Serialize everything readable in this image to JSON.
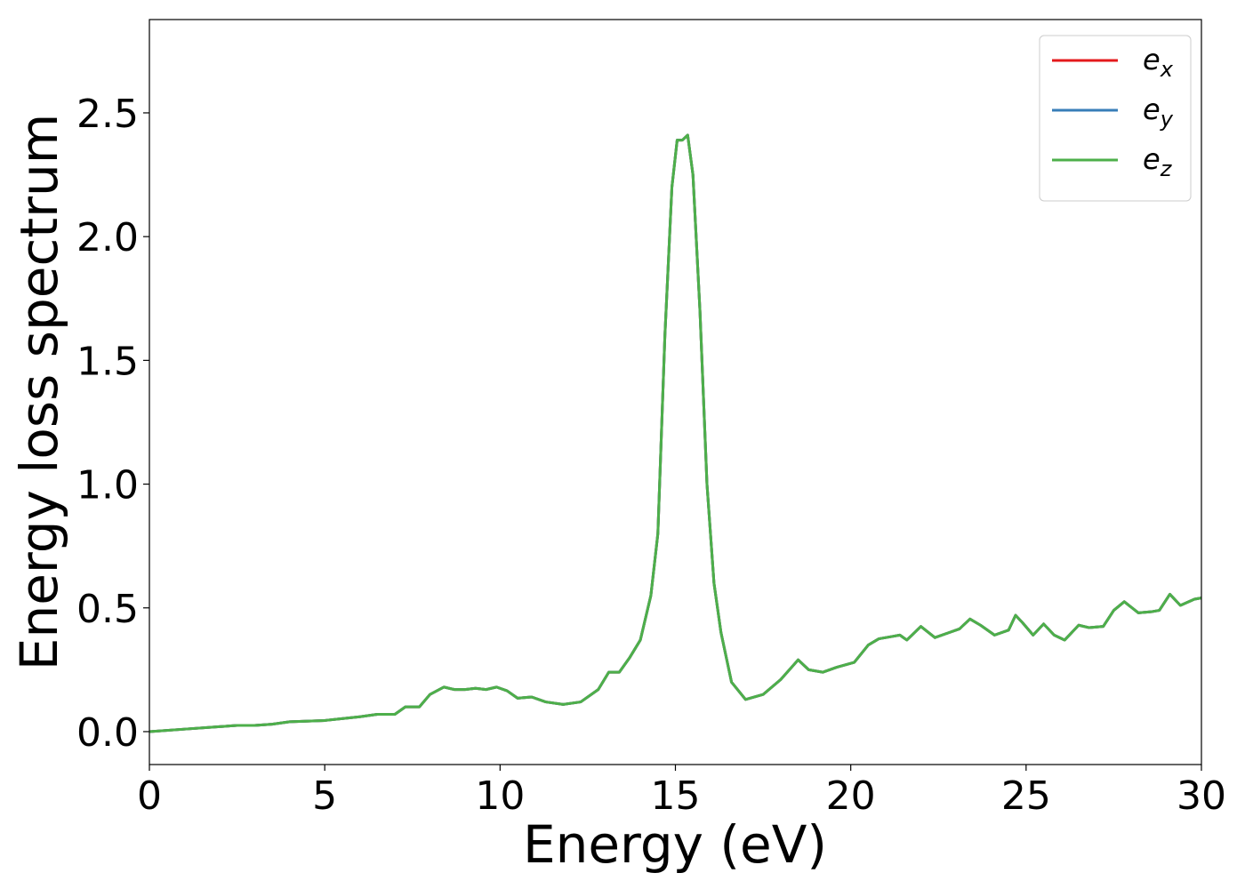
{
  "chart_data": {
    "type": "line",
    "xlabel": "Energy (eV)",
    "ylabel": "Energy loss spectrum",
    "x": [
      0,
      1,
      2,
      2.5,
      3,
      3.5,
      4,
      5,
      6,
      6.5,
      7,
      7.3,
      7.7,
      8,
      8.4,
      8.7,
      9,
      9.3,
      9.6,
      9.9,
      10.2,
      10.5,
      10.9,
      11.3,
      11.8,
      12.3,
      12.8,
      13.1,
      13.4,
      13.7,
      14.0,
      14.3,
      14.5,
      14.7,
      14.9,
      15.05,
      15.2,
      15.35,
      15.5,
      15.7,
      15.9,
      16.1,
      16.3,
      16.6,
      17.0,
      17.5,
      18.0,
      18.5,
      18.8,
      19.2,
      19.6,
      20.1,
      20.5,
      20.8,
      21.2,
      21.4,
      21.6,
      22.0,
      22.4,
      22.8,
      23.1,
      23.4,
      23.7,
      24.1,
      24.5,
      24.7,
      24.9,
      25.2,
      25.5,
      25.8,
      26.1,
      26.5,
      26.8,
      27.2,
      27.5,
      27.8,
      28.2,
      28.6,
      28.8,
      29.1,
      29.4,
      29.8,
      30
    ],
    "series": [
      {
        "name": "e_x",
        "color": "#e41a1c",
        "values": [
          0.0,
          0.01,
          0.02,
          0.025,
          0.025,
          0.03,
          0.04,
          0.045,
          0.06,
          0.07,
          0.07,
          0.1,
          0.1,
          0.15,
          0.18,
          0.17,
          0.17,
          0.175,
          0.17,
          0.18,
          0.165,
          0.135,
          0.14,
          0.12,
          0.11,
          0.12,
          0.17,
          0.24,
          0.24,
          0.3,
          0.37,
          0.55,
          0.8,
          1.6,
          2.2,
          2.39,
          2.39,
          2.41,
          2.25,
          1.7,
          1.0,
          0.6,
          0.4,
          0.2,
          0.13,
          0.15,
          0.21,
          0.29,
          0.25,
          0.24,
          0.26,
          0.28,
          0.35,
          0.375,
          0.385,
          0.39,
          0.37,
          0.425,
          0.38,
          0.4,
          0.415,
          0.455,
          0.43,
          0.39,
          0.41,
          0.47,
          0.44,
          0.39,
          0.435,
          0.39,
          0.37,
          0.43,
          0.42,
          0.425,
          0.49,
          0.525,
          0.48,
          0.485,
          0.49,
          0.555,
          0.51,
          0.535,
          0.54
        ]
      },
      {
        "name": "e_y",
        "color": "#377eb8",
        "values": [
          0.0,
          0.01,
          0.02,
          0.025,
          0.025,
          0.03,
          0.04,
          0.045,
          0.06,
          0.07,
          0.07,
          0.1,
          0.1,
          0.15,
          0.18,
          0.17,
          0.17,
          0.175,
          0.17,
          0.18,
          0.165,
          0.135,
          0.14,
          0.12,
          0.11,
          0.12,
          0.17,
          0.24,
          0.24,
          0.3,
          0.37,
          0.55,
          0.8,
          1.6,
          2.2,
          2.39,
          2.39,
          2.41,
          2.25,
          1.7,
          1.0,
          0.6,
          0.4,
          0.2,
          0.13,
          0.15,
          0.21,
          0.29,
          0.25,
          0.24,
          0.26,
          0.28,
          0.35,
          0.375,
          0.385,
          0.39,
          0.37,
          0.425,
          0.38,
          0.4,
          0.415,
          0.455,
          0.43,
          0.39,
          0.41,
          0.47,
          0.44,
          0.39,
          0.435,
          0.39,
          0.37,
          0.43,
          0.42,
          0.425,
          0.49,
          0.525,
          0.48,
          0.485,
          0.49,
          0.555,
          0.51,
          0.535,
          0.54
        ]
      },
      {
        "name": "e_z",
        "color": "#4daf4a",
        "values": [
          0.0,
          0.01,
          0.02,
          0.025,
          0.025,
          0.03,
          0.04,
          0.045,
          0.06,
          0.07,
          0.07,
          0.1,
          0.1,
          0.15,
          0.18,
          0.17,
          0.17,
          0.175,
          0.17,
          0.18,
          0.165,
          0.135,
          0.14,
          0.12,
          0.11,
          0.12,
          0.17,
          0.24,
          0.24,
          0.3,
          0.37,
          0.55,
          0.8,
          1.6,
          2.2,
          2.39,
          2.39,
          2.41,
          2.25,
          1.7,
          1.0,
          0.6,
          0.4,
          0.2,
          0.13,
          0.15,
          0.21,
          0.29,
          0.25,
          0.24,
          0.26,
          0.28,
          0.35,
          0.375,
          0.385,
          0.39,
          0.37,
          0.425,
          0.38,
          0.4,
          0.415,
          0.455,
          0.43,
          0.39,
          0.41,
          0.47,
          0.44,
          0.39,
          0.435,
          0.39,
          0.37,
          0.43,
          0.42,
          0.425,
          0.49,
          0.525,
          0.48,
          0.485,
          0.49,
          0.555,
          0.51,
          0.535,
          0.54
        ]
      }
    ],
    "xlim": [
      0,
      30
    ],
    "xticks": [
      0,
      5,
      10,
      15,
      20,
      25,
      30
    ],
    "ylim": [
      -0.133,
      2.877
    ],
    "yticks": [
      {
        "value": 0,
        "label": "0.0"
      },
      0.5,
      {
        "value": 1,
        "label": "1.0"
      },
      1.5,
      {
        "value": 2,
        "label": "2.0"
      },
      2.5
    ],
    "grid": false,
    "legend": "upper-right"
  }
}
